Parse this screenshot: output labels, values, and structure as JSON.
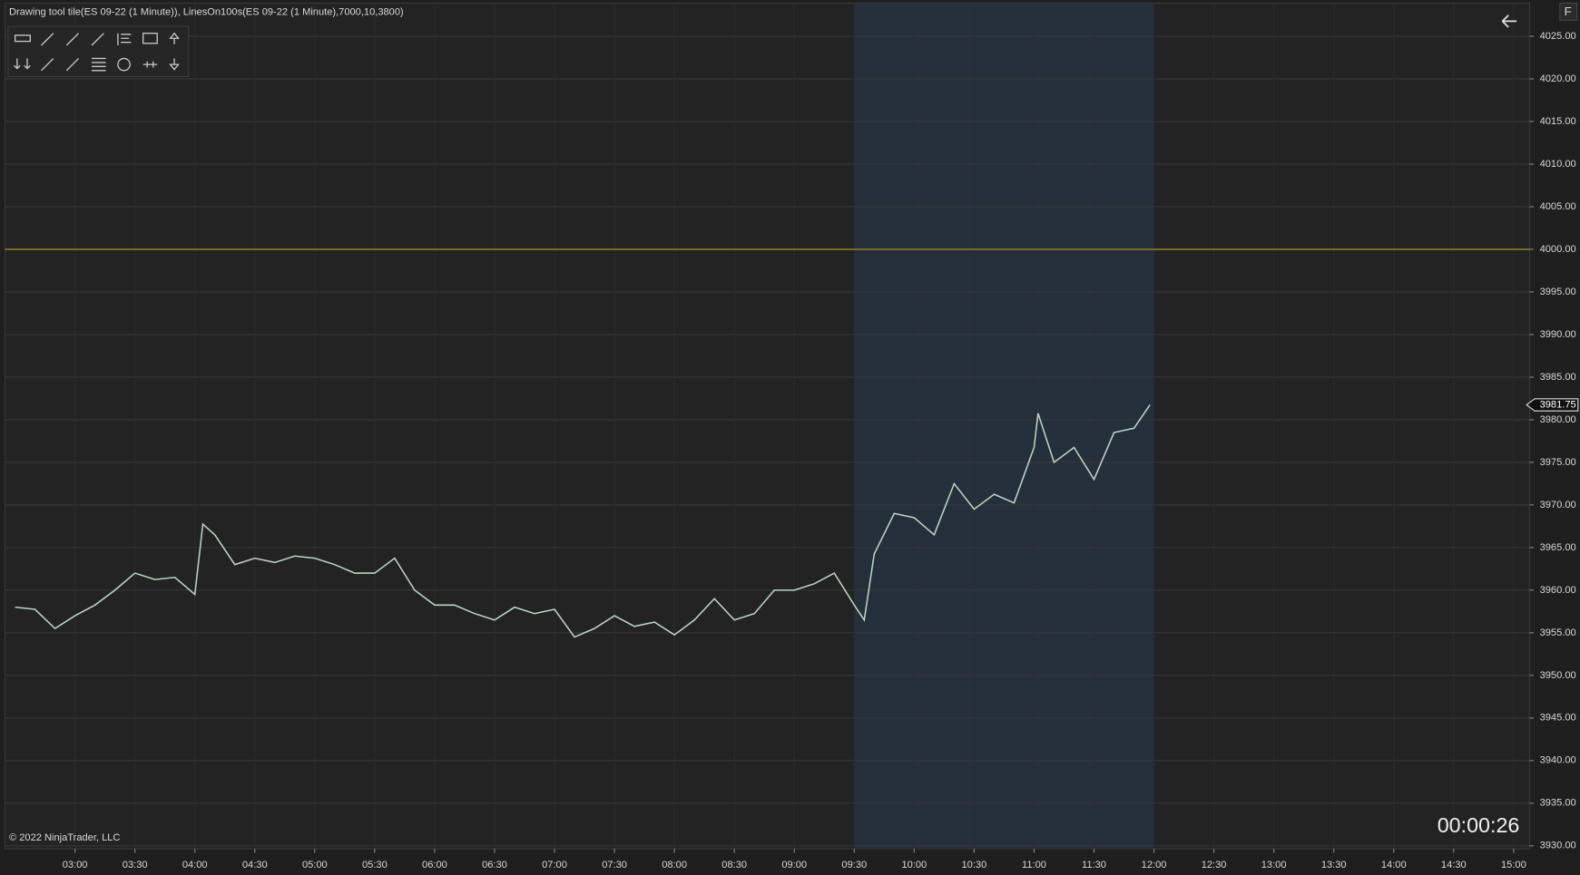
{
  "chart_data": {
    "type": "line",
    "title": "Drawing tool tile(ES 09-22 (1 Minute)), LinesOn100s(ES 09-22 (1 Minute),7000,10,3800)",
    "x": [
      "02:30",
      "02:40",
      "02:50",
      "03:00",
      "03:10",
      "03:20",
      "03:30",
      "03:40",
      "03:50",
      "04:00",
      "04:04",
      "04:10",
      "04:20",
      "04:30",
      "04:40",
      "04:50",
      "05:00",
      "05:10",
      "05:20",
      "05:30",
      "05:40",
      "05:50",
      "06:00",
      "06:10",
      "06:20",
      "06:30",
      "06:40",
      "06:50",
      "07:00",
      "07:10",
      "07:20",
      "07:30",
      "07:40",
      "07:50",
      "08:00",
      "08:10",
      "08:20",
      "08:30",
      "08:40",
      "08:50",
      "09:00",
      "09:10",
      "09:20",
      "09:30",
      "09:35",
      "09:40",
      "09:50",
      "10:00",
      "10:10",
      "10:20",
      "10:30",
      "10:40",
      "10:50",
      "11:00",
      "11:02",
      "11:10",
      "11:20",
      "11:30",
      "11:40",
      "11:50",
      "11:58"
    ],
    "values": [
      3958,
      3957.75,
      3955.5,
      3957,
      3958.25,
      3960,
      3962,
      3961.25,
      3961.5,
      3959.5,
      3967.75,
      3966.5,
      3963,
      3963.75,
      3963.25,
      3964,
      3963.75,
      3963,
      3962,
      3962,
      3963.75,
      3960,
      3958.25,
      3958.25,
      3957.25,
      3956.5,
      3958,
      3957.25,
      3957.75,
      3954.5,
      3955.5,
      3957,
      3955.75,
      3956.25,
      3954.75,
      3956.5,
      3959,
      3956.5,
      3957.25,
      3960,
      3960,
      3960.75,
      3962,
      3958.25,
      3956.5,
      3964.25,
      3969,
      3968.5,
      3966.5,
      3972.5,
      3969.5,
      3971.25,
      3970.25,
      3976.75,
      3980.75,
      3975,
      3976.75,
      3973,
      3978.5,
      3979,
      3981.75
    ],
    "color": "#b9d6c0",
    "xlim": [
      "02:25",
      "15:08"
    ],
    "xticks": [
      "03:00",
      "03:30",
      "04:00",
      "04:30",
      "05:00",
      "05:30",
      "06:00",
      "06:30",
      "07:00",
      "07:30",
      "08:00",
      "08:30",
      "09:00",
      "09:30",
      "10:00",
      "10:30",
      "11:00",
      "11:30",
      "12:00",
      "12:30",
      "13:00",
      "13:30",
      "14:00",
      "14:30",
      "15:00"
    ],
    "ylim": [
      3929.65,
      4028.9
    ],
    "yticks": [
      {
        "value": 3930,
        "label": "3930.00"
      },
      {
        "value": 3935,
        "label": "3935.00"
      },
      {
        "value": 3940,
        "label": "3940.00"
      },
      {
        "value": 3945,
        "label": "3945.00"
      },
      {
        "value": 3950,
        "label": "3950.00"
      },
      {
        "value": 3955,
        "label": "3955.00"
      },
      {
        "value": 3960,
        "label": "3960.00"
      },
      {
        "value": 3965,
        "label": "3965.00"
      },
      {
        "value": 3970,
        "label": "3970.00"
      },
      {
        "value": 3975,
        "label": "3975.00"
      },
      {
        "value": 3980,
        "label": "3980.00"
      },
      {
        "value": 3985,
        "label": "3985.00"
      },
      {
        "value": 3990,
        "label": "3990.00"
      },
      {
        "value": 3995,
        "label": "3995.00"
      },
      {
        "value": 4000,
        "label": "4000.00"
      },
      {
        "value": 4005,
        "label": "4005.00"
      },
      {
        "value": 4010,
        "label": "4010.00"
      },
      {
        "value": 4015,
        "label": "4015.00"
      },
      {
        "value": 4020,
        "label": "4020.00"
      },
      {
        "value": 4025,
        "label": "4025.00"
      }
    ],
    "grid": true,
    "session_shading": [
      "09:30",
      "12:00"
    ],
    "reference_line": 4000,
    "last_price": {
      "value": 3981.75,
      "label": "3981.75"
    }
  },
  "ui": {
    "copyright": "© 2022 NinjaTrader, LLC",
    "timer": "00:00:26",
    "corner_button": "F"
  }
}
